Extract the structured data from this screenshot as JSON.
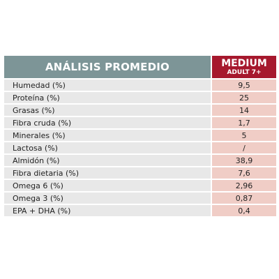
{
  "table": {
    "header": {
      "title": "ANÁLISIS PROMEDIO",
      "product_line1": "MEDIUM",
      "product_line2": "ADULT 7+"
    },
    "rows": [
      {
        "label": "Humedad (%)",
        "value": "9,5"
      },
      {
        "label": "Proteína (%)",
        "value": "25"
      },
      {
        "label": "Grasas (%)",
        "value": "14"
      },
      {
        "label": "Fibra cruda (%)",
        "value": "1,7"
      },
      {
        "label": "Minerales (%)",
        "value": "5"
      },
      {
        "label": "Lactosa (%)",
        "value": "/"
      },
      {
        "label": "Almidón (%)",
        "value": "38,9"
      },
      {
        "label": "Fibra dietaria (%)",
        "value": "7,6"
      },
      {
        "label": "Omega 6 (%)",
        "value": "2,96"
      },
      {
        "label": "Omega 3 (%)",
        "value": "0,87"
      },
      {
        "label": "EPA + DHA (%)",
        "value": "0,4"
      }
    ]
  },
  "colors": {
    "header_left_bg": "#7d9597",
    "header_right_bg": "#a6182d",
    "label_cell_bg": "#e8e8e8",
    "value_cell_bg": "#f0cdc6"
  }
}
